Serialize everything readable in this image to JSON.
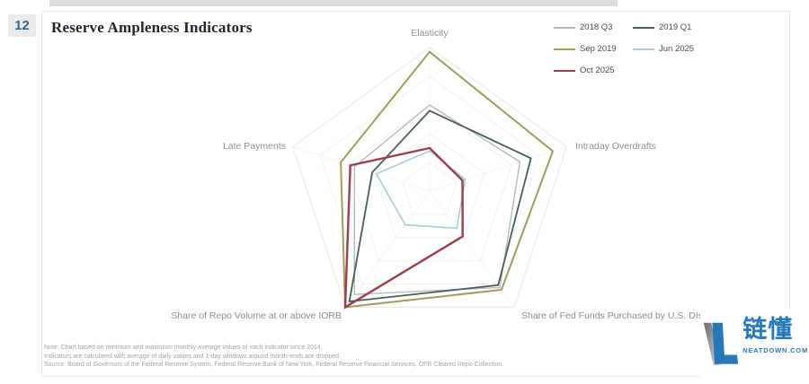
{
  "slide": {
    "number": "12",
    "title": "Reserve Ampleness Indicators"
  },
  "notes": {
    "line1": "Note: Chart based on minimum and maximum monthly average values of each indicator since 2014.",
    "line2": "Indicators are calculated with average of daily values and 1-day windows around month-ends are dropped.",
    "line3": "Source: Board of Governors of the Federal Reserve System, Federal Reserve Bank of New York, Federal Reserve Financial Services, OFR Cleared Repo Collection."
  },
  "watermark": {
    "brand": "链懂",
    "domain": "NEATDOWN.COM",
    "brand_color": "#2878b8"
  },
  "colors": {
    "slide_number_badge_bg": "#ebebeb",
    "slide_number_text": "#31639c",
    "panel_border": "#e6e6e6",
    "grid_line": "#ededed",
    "axis_label_text": "#8d8d8d"
  },
  "chart_data": {
    "type": "radar",
    "title": "Reserve Ampleness Indicators",
    "axes": [
      "Elasticity",
      "Intraday Overdrafts",
      "Share of Fed Funds Purchased by U.S. DIs",
      "Share of Repo Volume at or above IORB",
      "Late Payments"
    ],
    "scale": {
      "min": 0,
      "max": 1,
      "rings": 5
    },
    "grid": true,
    "legend_position": "top-right",
    "series": [
      {
        "name": "2018 Q3",
        "color": "#b9b9b9",
        "width": 1.4,
        "values": [
          0.6,
          0.66,
          0.83,
          0.89,
          0.55
        ]
      },
      {
        "name": "2019 Q1",
        "color": "#44605c",
        "width": 1.8,
        "values": [
          0.56,
          0.74,
          0.81,
          0.95,
          0.42
        ]
      },
      {
        "name": "Sep 2019",
        "color": "#a39b5c",
        "width": 2.0,
        "values": [
          0.97,
          0.9,
          0.85,
          1.0,
          0.65
        ]
      },
      {
        "name": "Jun 2025",
        "color": "#a6cbdd",
        "width": 1.6,
        "values": [
          0.28,
          0.26,
          0.32,
          0.29,
          0.39
        ]
      },
      {
        "name": "Oct 2025",
        "color": "#9c3f4b",
        "width": 2.4,
        "values": [
          0.3,
          0.24,
          0.39,
          1.0,
          0.58
        ]
      }
    ]
  }
}
